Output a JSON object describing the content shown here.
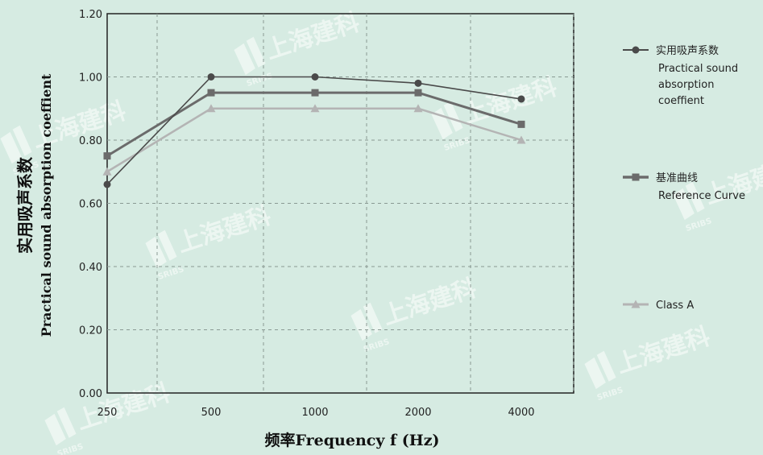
{
  "chart_data": {
    "type": "line",
    "x": [
      "250",
      "500",
      "1000",
      "2000",
      "4000"
    ],
    "xlabel": "频率Frequency    f (Hz)",
    "ylabel_cn": "实用吸声系数",
    "ylabel_en": "Practical sound absorption coeffient",
    "ylim": [
      0,
      1.2
    ],
    "yticks": [
      "0.00",
      "0.20",
      "0.40",
      "0.60",
      "0.80",
      "1.00",
      "1.20"
    ],
    "grid": true,
    "legend_position": "right",
    "series": [
      {
        "name_cn": "实用吸声系数",
        "name_en": [
          "Practical sound",
          "absorption",
          "coeffient"
        ],
        "marker": "circle",
        "color": "#4a4a4a",
        "values": [
          0.66,
          1.0,
          1.0,
          0.98,
          0.93
        ]
      },
      {
        "name_cn": "基准曲线",
        "name_en": [
          "Reference Curve"
        ],
        "marker": "square",
        "color": "#6b6b6b",
        "values": [
          0.75,
          0.95,
          0.95,
          0.95,
          0.85
        ]
      },
      {
        "name_cn": "",
        "name_en": [
          "Class A"
        ],
        "marker": "triangle",
        "color": "#b4b4b4",
        "values": [
          0.7,
          0.9,
          0.9,
          0.9,
          0.8
        ]
      }
    ]
  },
  "watermark": {
    "text": "上海建科",
    "sub": "SRIBS"
  }
}
